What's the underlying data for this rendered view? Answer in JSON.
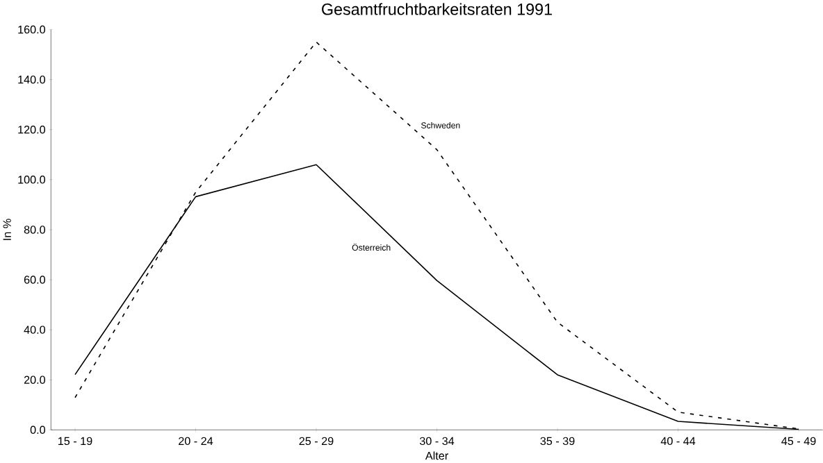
{
  "chart_data": {
    "type": "line",
    "title": "Gesamtfruchtbarkeitsraten 1991",
    "xlabel": "Alter",
    "ylabel": "In %",
    "categories": [
      "15 - 19",
      "20 - 24",
      "25 - 29",
      "30 - 34",
      "35 - 39",
      "40 - 44",
      "45 - 49"
    ],
    "series": [
      {
        "name": "Österreich",
        "color": "#000000",
        "line_style": "solid",
        "values": [
          22.1,
          93.2,
          106,
          59.7,
          22,
          3.4,
          0.2
        ]
      },
      {
        "name": "Schweden",
        "color": "#000000",
        "line_style": "dashed",
        "values": [
          12.9,
          95,
          155,
          112,
          43,
          7.1,
          0.4
        ]
      }
    ],
    "ylim": [
      0,
      160
    ],
    "yticks": [
      {
        "value": 0,
        "label": "0.0"
      },
      {
        "value": 20,
        "label": "20.0"
      },
      {
        "value": 40,
        "label": "40.0"
      },
      {
        "value": 60,
        "label": "60.0"
      },
      {
        "value": 80,
        "label": "80.0"
      },
      {
        "value": 100,
        "label": "100.0"
      },
      {
        "value": 120,
        "label": "120.0"
      },
      {
        "value": 140,
        "label": "140.0"
      },
      {
        "value": 160,
        "label": "160.0"
      }
    ],
    "grid": false,
    "legend": false,
    "marker": "none"
  }
}
